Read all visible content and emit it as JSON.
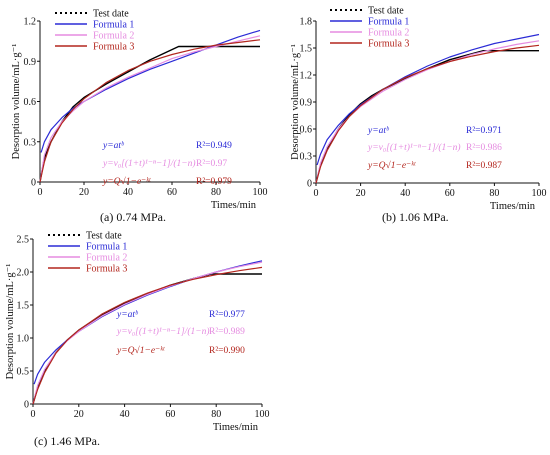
{
  "colors": {
    "test": "#000000",
    "formula1": "#2b2bd6",
    "formula2": "#e58ce0",
    "formula3": "#b3261e"
  },
  "chart_data": [
    {
      "type": "line",
      "caption": "(a) 0.74 MPa.",
      "xlabel": "Times/min",
      "ylabel": "Desorption volume/mL·g⁻¹",
      "xlim": [
        0,
        100
      ],
      "ylim": [
        0,
        1.2
      ],
      "xticks": [
        "0",
        "20",
        "40",
        "60",
        "80",
        "100"
      ],
      "yticks": [
        "0",
        "0.3",
        "0.6",
        "0.9",
        "1.2"
      ],
      "legend": [
        "Test date",
        "Formula  1",
        "Formula  2",
        "Formula  3"
      ],
      "legend_position": "top-left",
      "equations": [
        "y=atᵇ",
        "y=v₀[(1+t)¹⁻ⁿ−1]/(1−n)",
        "y=Q√1−e⁻ᵏᵗ"
      ],
      "r2": [
        "R²=0.949",
        "R²=0.97",
        "R²=0.979"
      ],
      "series": [
        {
          "name": "Test date",
          "x": [
            0,
            2,
            5,
            10,
            15,
            20,
            25,
            30,
            40,
            50,
            63,
            70,
            80,
            100
          ],
          "y": [
            0,
            0.18,
            0.3,
            0.45,
            0.56,
            0.63,
            0.68,
            0.73,
            0.82,
            0.91,
            1.01,
            1.01,
            1.01,
            1.01
          ]
        },
        {
          "name": "Formula  1",
          "x": [
            0.5,
            2,
            5,
            10,
            15,
            20,
            30,
            40,
            50,
            60,
            70,
            80,
            90,
            100
          ],
          "y": [
            0.22,
            0.3,
            0.39,
            0.48,
            0.55,
            0.6,
            0.69,
            0.77,
            0.84,
            0.9,
            0.96,
            1.02,
            1.08,
            1.13
          ]
        },
        {
          "name": "Formula  2",
          "x": [
            0,
            2,
            5,
            10,
            15,
            20,
            30,
            40,
            50,
            60,
            70,
            80,
            90,
            100
          ],
          "y": [
            0,
            0.2,
            0.33,
            0.45,
            0.53,
            0.6,
            0.7,
            0.78,
            0.85,
            0.92,
            0.97,
            1.01,
            1.05,
            1.09
          ]
        },
        {
          "name": "Formula  3",
          "x": [
            0,
            2,
            5,
            10,
            15,
            20,
            30,
            40,
            50,
            60,
            70,
            80,
            90,
            100
          ],
          "y": [
            0,
            0.15,
            0.3,
            0.44,
            0.54,
            0.62,
            0.74,
            0.83,
            0.9,
            0.95,
            0.99,
            1.02,
            1.04,
            1.06
          ]
        }
      ]
    },
    {
      "type": "line",
      "caption": "(b) 1.06 MPa.",
      "xlabel": "Times/min",
      "ylabel": "Desorption volume/mL·g⁻¹",
      "xlim": [
        0,
        100
      ],
      "ylim": [
        0,
        1.8
      ],
      "xticks": [
        "0",
        "20",
        "40",
        "60",
        "80",
        "100"
      ],
      "yticks": [
        "0",
        "0.3",
        "0.6",
        "0.9",
        "1.2",
        "1.5",
        "1.8"
      ],
      "legend": [
        "Test date",
        "Formula  1",
        "Formula  2",
        "Formula  3"
      ],
      "legend_position": "top-left",
      "equations": [
        "y=atᵇ",
        "y=v₀[(1+t)¹⁻ⁿ−1]/(1−n)",
        "y=Q√1−e⁻ᵏᵗ"
      ],
      "r2": [
        "R²=0.971",
        "R²=0.986",
        "R²=0.987"
      ],
      "series": [
        {
          "name": "Test date",
          "x": [
            0,
            2,
            5,
            10,
            15,
            20,
            25,
            30,
            40,
            50,
            60,
            75,
            80,
            100
          ],
          "y": [
            0,
            0.2,
            0.38,
            0.6,
            0.76,
            0.88,
            0.97,
            1.04,
            1.16,
            1.27,
            1.37,
            1.47,
            1.47,
            1.47
          ]
        },
        {
          "name": "Formula  1",
          "x": [
            0.5,
            2,
            5,
            10,
            15,
            20,
            30,
            40,
            50,
            60,
            70,
            80,
            90,
            100
          ],
          "y": [
            0.2,
            0.32,
            0.48,
            0.64,
            0.77,
            0.87,
            1.04,
            1.18,
            1.3,
            1.4,
            1.48,
            1.55,
            1.6,
            1.65
          ]
        },
        {
          "name": "Formula  2",
          "x": [
            0,
            2,
            5,
            10,
            15,
            20,
            30,
            40,
            50,
            60,
            70,
            80,
            90,
            100
          ],
          "y": [
            0,
            0.22,
            0.4,
            0.6,
            0.74,
            0.85,
            1.02,
            1.15,
            1.26,
            1.35,
            1.43,
            1.49,
            1.54,
            1.58
          ]
        },
        {
          "name": "Formula  3",
          "x": [
            0,
            2,
            5,
            10,
            15,
            20,
            30,
            40,
            50,
            60,
            70,
            80,
            90,
            100
          ],
          "y": [
            0,
            0.18,
            0.36,
            0.58,
            0.74,
            0.86,
            1.04,
            1.17,
            1.27,
            1.35,
            1.41,
            1.46,
            1.5,
            1.53
          ]
        }
      ]
    },
    {
      "type": "line",
      "caption": "(c) 1.46 MPa.",
      "xlabel": "Times/min",
      "ylabel": "Desorption volume/mL·g⁻¹",
      "xlim": [
        0,
        100
      ],
      "ylim": [
        0,
        2.5
      ],
      "xticks": [
        "0",
        "20",
        "40",
        "60",
        "80",
        "100"
      ],
      "yticks": [
        "0",
        "0.5",
        "1.0",
        "1.5",
        "2.0",
        "2.5"
      ],
      "legend": [
        "Test date",
        "Formula  1",
        "Formula  2",
        "Formula  3"
      ],
      "legend_position": "top-left",
      "equations": [
        "y=atᵇ",
        "y=v₀[(1+t)¹⁻ⁿ−1]/(1−n)",
        "y=Q√1−e⁻ᵏᵗ"
      ],
      "r2": [
        "R²=0.977",
        "R²=0.989",
        "R²=0.990"
      ],
      "series": [
        {
          "name": "Test date",
          "x": [
            0,
            2,
            5,
            10,
            15,
            20,
            30,
            40,
            50,
            60,
            70,
            78,
            80,
            100
          ],
          "y": [
            0,
            0.25,
            0.5,
            0.78,
            0.97,
            1.12,
            1.35,
            1.53,
            1.67,
            1.8,
            1.9,
            1.97,
            1.97,
            1.97
          ]
        },
        {
          "name": "Formula  1",
          "x": [
            0.5,
            2,
            5,
            10,
            15,
            20,
            30,
            40,
            50,
            60,
            70,
            80,
            90,
            100
          ],
          "y": [
            0.3,
            0.45,
            0.63,
            0.82,
            0.97,
            1.1,
            1.32,
            1.5,
            1.65,
            1.78,
            1.9,
            2.0,
            2.09,
            2.17
          ]
        },
        {
          "name": "Formula  2",
          "x": [
            0,
            2,
            5,
            10,
            15,
            20,
            30,
            40,
            50,
            60,
            70,
            80,
            90,
            100
          ],
          "y": [
            0,
            0.28,
            0.52,
            0.78,
            0.96,
            1.1,
            1.33,
            1.51,
            1.66,
            1.79,
            1.9,
            2.0,
            2.08,
            2.15
          ]
        },
        {
          "name": "Formula  3",
          "x": [
            0,
            2,
            5,
            10,
            15,
            20,
            30,
            40,
            50,
            60,
            70,
            80,
            90,
            100
          ],
          "y": [
            0,
            0.22,
            0.47,
            0.77,
            0.97,
            1.12,
            1.36,
            1.54,
            1.68,
            1.8,
            1.89,
            1.96,
            2.02,
            2.07
          ]
        }
      ]
    }
  ]
}
